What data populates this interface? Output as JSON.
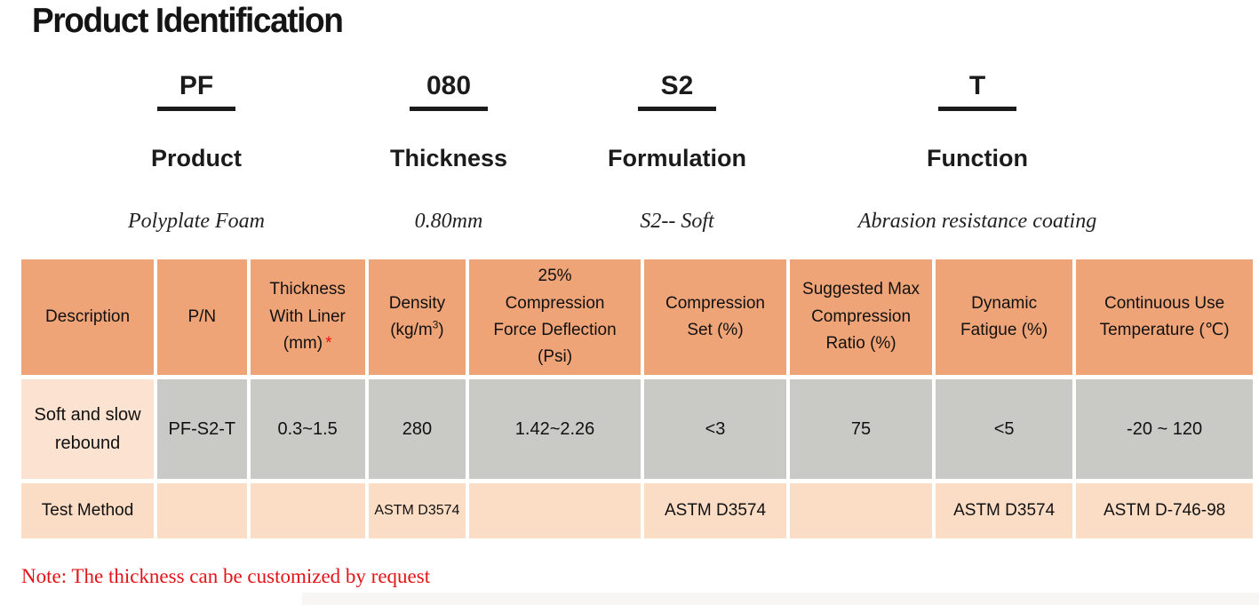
{
  "page": {
    "title": "Product Identification"
  },
  "code_breakdown": [
    {
      "code": "PF",
      "label": "Product",
      "description": "Polyplate Foam"
    },
    {
      "code": "080",
      "label": "Thickness",
      "description": "0.80mm"
    },
    {
      "code": "S2",
      "label": "Formulation",
      "description": "S2-- Soft"
    },
    {
      "code": "T",
      "label": "Function",
      "description": "Abrasion resistance  coating"
    }
  ],
  "table": {
    "headers": {
      "description": "Description",
      "pn": "P/N",
      "thickness_l1": "Thickness",
      "thickness_l2": "With Liner",
      "thickness_l3": "(mm)",
      "thickness_asterisk": "*",
      "density_l1": "Density",
      "density_l2_pre": "(kg/m",
      "density_sup": "3",
      "density_l2_post": ")",
      "cfd_l1": "25%",
      "cfd_l2": "Compression",
      "cfd_l3": "Force Deflection",
      "cfd_l4": "(Psi)",
      "compression_set_l1": "Compression",
      "compression_set_l2": "Set (%)",
      "suggested_l1": "Suggested Max",
      "suggested_l2": "Compression",
      "suggested_l3": "Ratio (%)",
      "dynamic_l1": "Dynamic",
      "dynamic_l2": "Fatigue (%)",
      "cut_l1": "Continuous Use",
      "cut_l2": "Temperature (℃)"
    },
    "data_row": {
      "description": "Soft and slow rebound",
      "pn": "PF-S2-T",
      "thickness_with_liner": "0.3~1.5",
      "density": "280",
      "compression_force_deflection": "1.42~2.26",
      "compression_set": "<3",
      "suggested_max_compression_ratio": "75",
      "dynamic_fatigue": "<5",
      "continuous_use_temperature": "-20 ~ 120"
    },
    "test_method_row": {
      "label": "Test Method",
      "pn": "",
      "thickness_with_liner": "",
      "density": "ASTM D3574",
      "compression_force_deflection": "",
      "compression_set": "ASTM D3574",
      "suggested_max_compression_ratio": "",
      "dynamic_fatigue": "ASTM D3574",
      "continuous_use_temperature": "ASTM D-746-98"
    }
  },
  "note": "Note:  The thickness can be customized by request",
  "colors": {
    "header_bg": "#EFA478",
    "data_row_bg": "#C9C9C5",
    "description_row_bg": "#FCE2D0",
    "test_row_bg": "#FBDCC5",
    "note_red": "#E21418",
    "asterisk_red": "#F00F0F",
    "text_black": "#111111"
  }
}
